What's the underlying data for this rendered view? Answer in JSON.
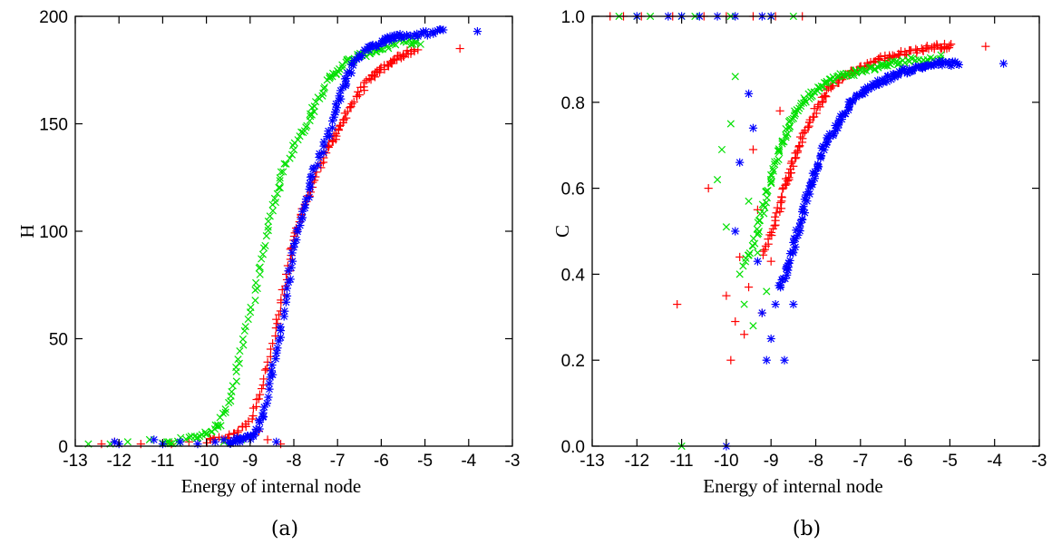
{
  "colors": {
    "red": "#ff0000",
    "green": "#00e000",
    "blue": "#0000ff"
  },
  "chart_data": [
    {
      "type": "scatter",
      "caption": "(a)",
      "xlabel": "Energy of internal node",
      "ylabel": "H",
      "xlim": [
        -13,
        -3
      ],
      "ylim": [
        0,
        200
      ],
      "xticks": [
        -13,
        -12,
        -11,
        -10,
        -9,
        -8,
        -7,
        -6,
        -5,
        -4,
        -3
      ],
      "yticks": [
        0,
        50,
        100,
        150,
        200
      ],
      "xtick_labels": [
        "-13",
        "-12",
        "-11",
        "-10",
        "-9",
        "-8",
        "-7",
        "-6",
        "-5",
        "-4",
        "-3"
      ],
      "ytick_labels": [
        "0",
        "50",
        "100",
        "150",
        "200"
      ],
      "grid": false,
      "series": [
        {
          "color": "#ff0000",
          "marker": "plus",
          "curve": [
            [
              -10.0,
              2
            ],
            [
              -9.4,
              5
            ],
            [
              -9.0,
              12
            ],
            [
              -8.7,
              30
            ],
            [
              -8.4,
              55
            ],
            [
              -8.2,
              75
            ],
            [
              -8.0,
              95
            ],
            [
              -7.8,
              110
            ],
            [
              -7.5,
              125
            ],
            [
              -7.2,
              140
            ],
            [
              -7.0,
              145
            ],
            [
              -6.8,
              155
            ],
            [
              -6.5,
              165
            ],
            [
              -6.2,
              172
            ],
            [
              -6.0,
              175
            ],
            [
              -5.7,
              180
            ],
            [
              -5.5,
              182
            ],
            [
              -5.2,
              184
            ]
          ],
          "extra": [
            [
              -12.4,
              1
            ],
            [
              -12.1,
              2
            ],
            [
              -11.5,
              1
            ],
            [
              -10.8,
              1
            ],
            [
              -10.4,
              2
            ],
            [
              -9.9,
              3
            ],
            [
              -9.5,
              4
            ],
            [
              -9.1,
              4
            ],
            [
              -8.8,
              7
            ],
            [
              -8.6,
              3
            ],
            [
              -8.3,
              1
            ],
            [
              -4.2,
              185
            ]
          ]
        },
        {
          "color": "#00e000",
          "marker": "x",
          "curve": [
            [
              -11.0,
              1
            ],
            [
              -10.5,
              3
            ],
            [
              -10.0,
              6
            ],
            [
              -9.7,
              10
            ],
            [
              -9.4,
              25
            ],
            [
              -9.2,
              45
            ],
            [
              -8.9,
              70
            ],
            [
              -8.7,
              90
            ],
            [
              -8.5,
              110
            ],
            [
              -8.3,
              125
            ],
            [
              -8.0,
              140
            ],
            [
              -7.7,
              150
            ],
            [
              -7.5,
              160
            ],
            [
              -7.2,
              170
            ],
            [
              -7.0,
              175
            ],
            [
              -6.7,
              180
            ],
            [
              -6.3,
              183
            ],
            [
              -6.0,
              185
            ],
            [
              -5.5,
              188
            ],
            [
              -5.2,
              188
            ]
          ],
          "extra": [
            [
              -12.7,
              1
            ],
            [
              -12.2,
              1
            ],
            [
              -11.8,
              2
            ],
            [
              -11.3,
              3
            ],
            [
              -10.9,
              2
            ],
            [
              -10.2,
              4
            ],
            [
              -9.6,
              2
            ],
            [
              -9.2,
              3
            ],
            [
              -5.1,
              187
            ]
          ]
        },
        {
          "color": "#0000ff",
          "marker": "asterisk",
          "curve": [
            [
              -9.5,
              1
            ],
            [
              -9.2,
              3
            ],
            [
              -8.9,
              5
            ],
            [
              -8.7,
              15
            ],
            [
              -8.5,
              35
            ],
            [
              -8.3,
              55
            ],
            [
              -8.1,
              80
            ],
            [
              -7.9,
              100
            ],
            [
              -7.7,
              115
            ],
            [
              -7.5,
              130
            ],
            [
              -7.2,
              145
            ],
            [
              -7.0,
              160
            ],
            [
              -6.8,
              170
            ],
            [
              -6.6,
              180
            ],
            [
              -6.3,
              185
            ],
            [
              -6.0,
              188
            ],
            [
              -5.8,
              190
            ],
            [
              -5.5,
              191
            ],
            [
              -5.0,
              192
            ],
            [
              -4.6,
              193
            ]
          ],
          "extra": [
            [
              -12.1,
              2
            ],
            [
              -12.0,
              1
            ],
            [
              -11.2,
              3
            ],
            [
              -11.0,
              1
            ],
            [
              -10.6,
              2
            ],
            [
              -10.2,
              1
            ],
            [
              -9.8,
              2
            ],
            [
              -9.6,
              3
            ],
            [
              -9.3,
              4
            ],
            [
              -8.4,
              2
            ],
            [
              -3.8,
              193
            ]
          ]
        }
      ]
    },
    {
      "type": "scatter",
      "caption": "(b)",
      "xlabel": "Energy of internal node",
      "ylabel": "C",
      "xlim": [
        -13,
        -3
      ],
      "ylim": [
        0.0,
        1.0
      ],
      "xticks": [
        -13,
        -12,
        -11,
        -10,
        -9,
        -8,
        -7,
        -6,
        -5,
        -4,
        -3
      ],
      "yticks": [
        0.0,
        0.2,
        0.4,
        0.6,
        0.8,
        1.0
      ],
      "xtick_labels": [
        "-13",
        "-12",
        "-11",
        "-10",
        "-9",
        "-8",
        "-7",
        "-6",
        "-5",
        "-4",
        "-3"
      ],
      "ytick_labels": [
        "0.0",
        "0.2",
        "0.4",
        "0.6",
        "0.8",
        "1.0"
      ],
      "grid": false,
      "series": [
        {
          "color": "#ff0000",
          "marker": "plus",
          "curve": [
            [
              -9.2,
              0.45
            ],
            [
              -8.9,
              0.52
            ],
            [
              -8.7,
              0.6
            ],
            [
              -8.5,
              0.66
            ],
            [
              -8.3,
              0.72
            ],
            [
              -8.0,
              0.78
            ],
            [
              -7.7,
              0.83
            ],
            [
              -7.4,
              0.86
            ],
            [
              -7.0,
              0.88
            ],
            [
              -6.6,
              0.9
            ],
            [
              -6.2,
              0.91
            ],
            [
              -5.8,
              0.92
            ],
            [
              -5.3,
              0.93
            ],
            [
              -5.0,
              0.93
            ]
          ],
          "extra": [
            [
              -12.6,
              1.0
            ],
            [
              -12.3,
              1.0
            ],
            [
              -11.9,
              1.0
            ],
            [
              -11.2,
              1.0
            ],
            [
              -10.5,
              1.0
            ],
            [
              -10.0,
              1.0
            ],
            [
              -9.4,
              1.0
            ],
            [
              -8.9,
              1.0
            ],
            [
              -8.3,
              1.0
            ],
            [
              -11.1,
              0.33
            ],
            [
              -10.4,
              0.6
            ],
            [
              -10.0,
              0.35
            ],
            [
              -9.9,
              0.2
            ],
            [
              -9.8,
              0.29
            ],
            [
              -9.7,
              0.44
            ],
            [
              -9.6,
              0.26
            ],
            [
              -9.5,
              0.37
            ],
            [
              -9.4,
              0.69
            ],
            [
              -9.3,
              0.55
            ],
            [
              -9.2,
              0.31
            ],
            [
              -9.0,
              0.43
            ],
            [
              -8.8,
              0.78
            ],
            [
              -8.6,
              0.62
            ],
            [
              -4.2,
              0.93
            ]
          ]
        },
        {
          "color": "#00e000",
          "marker": "x",
          "curve": [
            [
              -9.6,
              0.42
            ],
            [
              -9.3,
              0.5
            ],
            [
              -9.1,
              0.58
            ],
            [
              -8.9,
              0.66
            ],
            [
              -8.7,
              0.72
            ],
            [
              -8.5,
              0.77
            ],
            [
              -8.2,
              0.81
            ],
            [
              -7.9,
              0.84
            ],
            [
              -7.5,
              0.86
            ],
            [
              -7.1,
              0.87
            ],
            [
              -6.7,
              0.88
            ],
            [
              -6.3,
              0.89
            ],
            [
              -5.8,
              0.9
            ],
            [
              -5.2,
              0.9
            ]
          ],
          "extra": [
            [
              -12.4,
              1.0
            ],
            [
              -12.0,
              1.0
            ],
            [
              -11.7,
              1.0
            ],
            [
              -11.0,
              1.0
            ],
            [
              -10.7,
              1.0
            ],
            [
              -9.9,
              1.0
            ],
            [
              -9.0,
              1.0
            ],
            [
              -8.5,
              1.0
            ],
            [
              -11.0,
              0.0
            ],
            [
              -10.2,
              0.62
            ],
            [
              -10.1,
              0.69
            ],
            [
              -10.0,
              0.51
            ],
            [
              -9.9,
              0.75
            ],
            [
              -9.8,
              0.86
            ],
            [
              -9.7,
              0.4
            ],
            [
              -9.6,
              0.33
            ],
            [
              -9.5,
              0.57
            ],
            [
              -9.4,
              0.28
            ],
            [
              -9.3,
              0.45
            ],
            [
              -9.1,
              0.36
            ],
            [
              -5.2,
              0.91
            ]
          ]
        },
        {
          "color": "#0000ff",
          "marker": "asterisk",
          "curve": [
            [
              -8.8,
              0.37
            ],
            [
              -8.6,
              0.42
            ],
            [
              -8.4,
              0.5
            ],
            [
              -8.2,
              0.58
            ],
            [
              -8.0,
              0.64
            ],
            [
              -7.8,
              0.7
            ],
            [
              -7.5,
              0.75
            ],
            [
              -7.2,
              0.8
            ],
            [
              -6.9,
              0.83
            ],
            [
              -6.5,
              0.85
            ],
            [
              -6.1,
              0.87
            ],
            [
              -5.7,
              0.88
            ],
            [
              -5.3,
              0.89
            ],
            [
              -4.8,
              0.89
            ]
          ],
          "extra": [
            [
              -12.0,
              1.0
            ],
            [
              -11.3,
              1.0
            ],
            [
              -11.0,
              1.0
            ],
            [
              -10.6,
              1.0
            ],
            [
              -10.2,
              1.0
            ],
            [
              -9.8,
              1.0
            ],
            [
              -9.2,
              1.0
            ],
            [
              -9.0,
              1.0
            ],
            [
              -10.0,
              0.0
            ],
            [
              -9.8,
              0.5
            ],
            [
              -9.7,
              0.66
            ],
            [
              -9.5,
              0.82
            ],
            [
              -9.4,
              0.74
            ],
            [
              -9.3,
              0.43
            ],
            [
              -9.2,
              0.31
            ],
            [
              -9.1,
              0.2
            ],
            [
              -9.0,
              0.25
            ],
            [
              -8.9,
              0.33
            ],
            [
              -8.7,
              0.2
            ],
            [
              -8.5,
              0.33
            ],
            [
              -3.8,
              0.89
            ]
          ]
        }
      ]
    }
  ]
}
